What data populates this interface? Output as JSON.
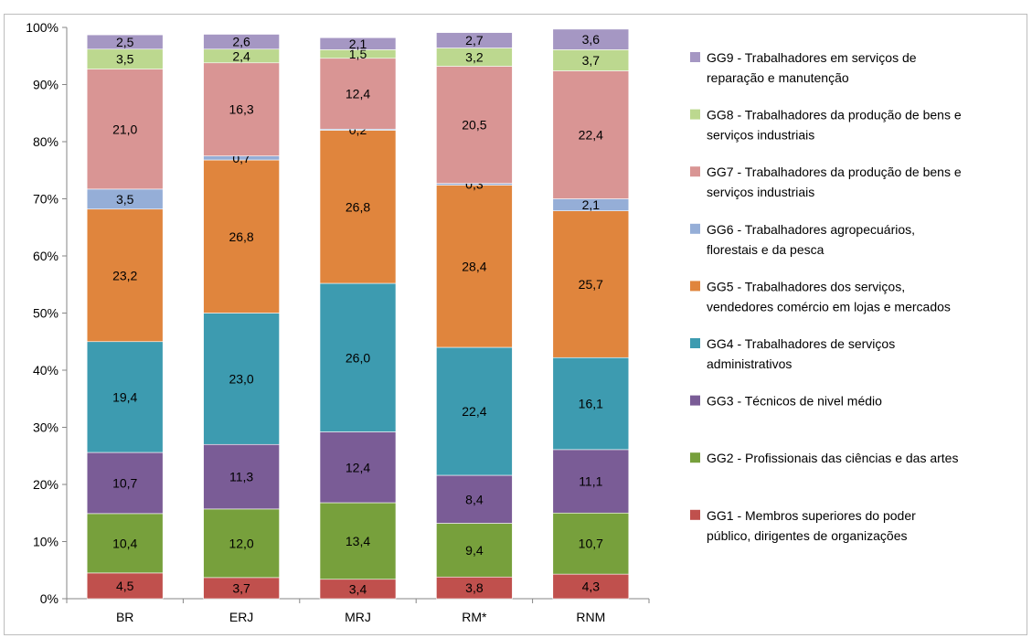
{
  "chart_data": {
    "type": "bar",
    "stacked": true,
    "percent_stacked": true,
    "categories": [
      "BR",
      "ERJ",
      "MRJ",
      "RM*",
      "RNM"
    ],
    "y_ticks": [
      "0%",
      "10%",
      "20%",
      "30%",
      "40%",
      "50%",
      "60%",
      "70%",
      "80%",
      "90%",
      "100%"
    ],
    "ylim": [
      0,
      100
    ],
    "grid": false,
    "legend_position": "right",
    "series": [
      {
        "name": "GG1 - Membros superiores do poder público, dirigentes de organizações",
        "legend_lines": [
          "GG1 - Membros superiores do poder",
          "público, dirigentes de organizações"
        ],
        "color": "#c0504d",
        "values": [
          4.5,
          3.7,
          3.4,
          3.8,
          4.3
        ],
        "labels": [
          "4,5",
          "3,7",
          "3,4",
          "3,8",
          "4,3"
        ]
      },
      {
        "name": "GG2 - Profissionais das ciências e das artes",
        "legend_lines": [
          "GG2 - Profissionais das ciências e das artes"
        ],
        "color": "#77a03c",
        "values": [
          10.4,
          12.0,
          13.4,
          9.4,
          10.7
        ],
        "labels": [
          "10,4",
          "12,0",
          "13,4",
          "9,4",
          "10,7"
        ]
      },
      {
        "name": "GG3 - Técnicos de nivel médio",
        "legend_lines": [
          "GG3 - Técnicos de nivel médio"
        ],
        "color": "#7a5c96",
        "values": [
          10.7,
          11.3,
          12.4,
          8.4,
          11.1
        ],
        "labels": [
          "10,7",
          "11,3",
          "12,4",
          "8,4",
          "11,1"
        ]
      },
      {
        "name": "GG4 - Trabalhadores de serviços administrativos",
        "legend_lines": [
          "GG4 - Trabalhadores de serviços",
          "administrativos"
        ],
        "color": "#3d9bb0",
        "values": [
          19.4,
          23.0,
          26.0,
          22.4,
          16.1
        ],
        "labels": [
          "19,4",
          "23,0",
          "26,0",
          "22,4",
          "16,1"
        ]
      },
      {
        "name": "GG5 - Trabalhadores dos serviços, vendedores comércio em lojas e mercados",
        "legend_lines": [
          "GG5 - Trabalhadores dos serviços,",
          "vendedores comércio em lojas e mercados"
        ],
        "color": "#e0853d",
        "values": [
          23.2,
          26.8,
          26.8,
          28.4,
          25.7
        ],
        "labels": [
          "23,2",
          "26,8",
          "26,8",
          "28,4",
          "25,7"
        ]
      },
      {
        "name": "GG6 - Trabalhadores agropecuários, florestais e da pesca",
        "legend_lines": [
          "GG6 - Trabalhadores agropecuários,",
          "florestais e da pesca"
        ],
        "color": "#95aed7",
        "values": [
          3.5,
          0.7,
          0.2,
          0.3,
          2.1
        ],
        "labels": [
          "3,5",
          "0,7",
          "0,2",
          "0,3",
          "2,1"
        ]
      },
      {
        "name": "GG7 - Trabalhadores da produção de bens e serviços industriais",
        "legend_lines": [
          "GG7 - Trabalhadores da produção de bens e",
          "serviços industriais"
        ],
        "color": "#d99594",
        "values": [
          21.0,
          16.3,
          12.4,
          20.5,
          22.4
        ],
        "labels": [
          "21,0",
          "16,3",
          "12,4",
          "20,5",
          "22,4"
        ]
      },
      {
        "name": "GG8 - Trabalhadores da produção de bens e serviços industriais",
        "legend_lines": [
          "GG8 - Trabalhadores da produção de bens e",
          "serviços industriais"
        ],
        "color": "#bcd88f",
        "values": [
          3.5,
          2.4,
          1.5,
          3.2,
          3.7
        ],
        "labels": [
          "3,5",
          "2,4",
          "1,5",
          "3,2",
          "3,7"
        ]
      },
      {
        "name": "GG9 - Trabalhadores em serviços de reparação e manutenção",
        "legend_lines": [
          "GG9 - Trabalhadores em serviços de",
          "reparação e manutenção"
        ],
        "color": "#a597c3",
        "values": [
          2.5,
          2.6,
          2.1,
          2.7,
          3.6
        ],
        "labels": [
          "2,5",
          "2,6",
          "2,1",
          "2,7",
          "3,6"
        ]
      }
    ]
  }
}
